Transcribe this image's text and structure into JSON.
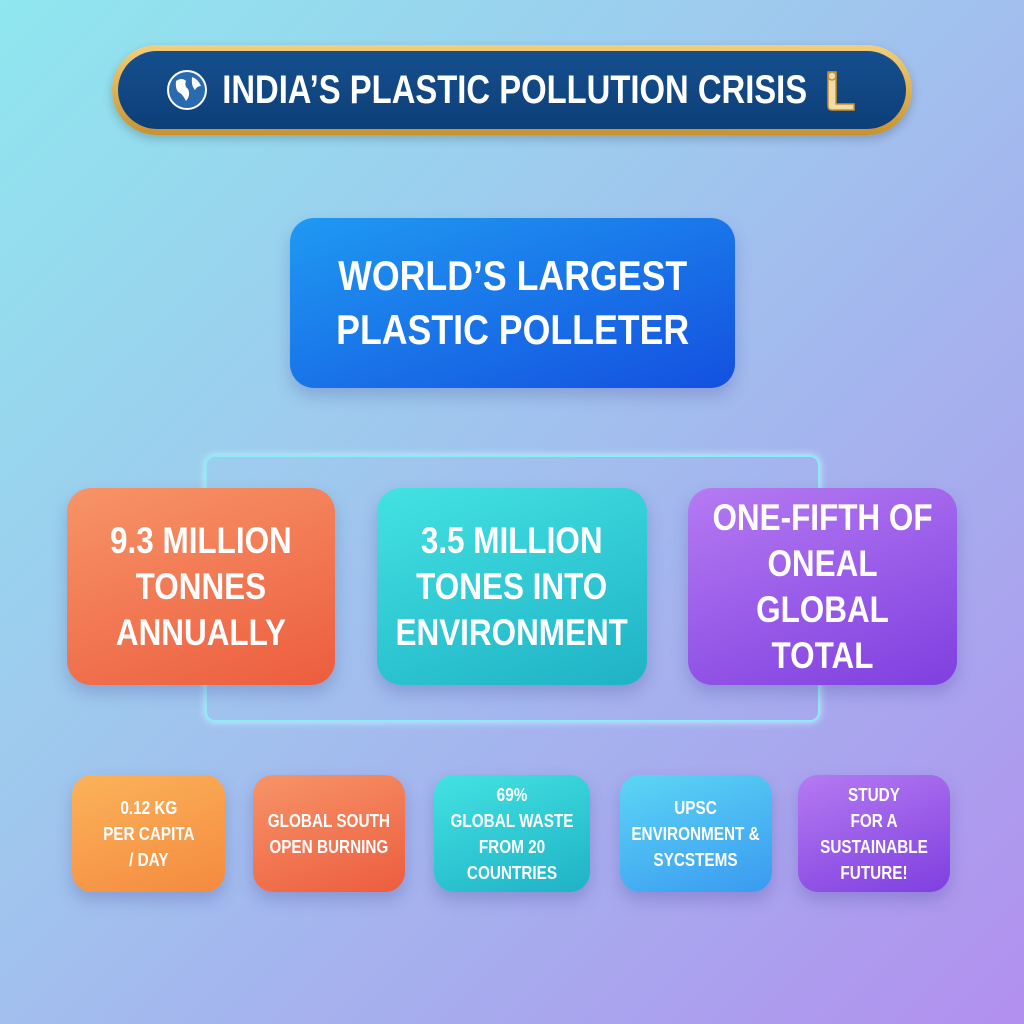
{
  "header": {
    "title": "INDIA’S PLASTIC POLLUTION CRISIS",
    "left_icon": "globe-icon",
    "right_icon": "scroll-icon"
  },
  "main": {
    "text": "WORLD’S LARGEST\nPLASTIC POLLETER"
  },
  "stats": [
    {
      "text": "9.3 MILLION\nTONNES\nANNUALLY",
      "color": "#ef6a48"
    },
    {
      "text": "3.5 MILLION\nTONES INTO\nENVIRONMENT",
      "color": "#2cc6d2"
    },
    {
      "text": "ONE-FIFTH OF\nONEAL\nGLOBAL TOTAL",
      "color": "#9a58ea"
    }
  ],
  "facts": [
    {
      "text": "0.12 KG\nPER CAPITA\n/ DAY",
      "color": "#f7a04c"
    },
    {
      "text": "GLOBAL SOUTH\nOPEN BURNING",
      "color": "#ef6a48"
    },
    {
      "text": "69%\nGLOBAL WASTE\nFROM 20 COUNTRIES",
      "color": "#2cc6d2"
    },
    {
      "text": "UPSC\nENVIRONMENT &\nSYCSTEMS",
      "color": "#48b8f2"
    },
    {
      "text": "STUDY\nFOR A SUSTAINABLE\nFUTURE!",
      "color": "#9a58ea"
    }
  ]
}
